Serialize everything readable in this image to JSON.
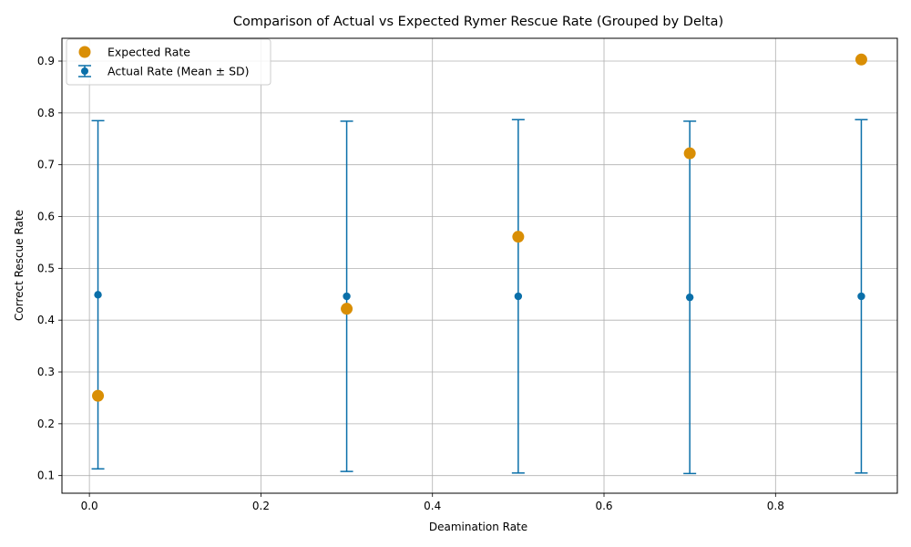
{
  "chart_data": {
    "type": "scatter",
    "title": "Comparison of Actual vs Expected Rymer Rescue Rate (Grouped by Delta)",
    "xlabel": "Deamination Rate",
    "ylabel": "Correct Rescue Rate",
    "xlim": [
      -0.032,
      0.942
    ],
    "ylim": [
      0.066,
      0.944
    ],
    "xticks": [
      "0.0",
      "0.2",
      "0.4",
      "0.6",
      "0.8"
    ],
    "yticks": [
      "0.1",
      "0.2",
      "0.3",
      "0.4",
      "0.5",
      "0.6",
      "0.7",
      "0.8",
      "0.9"
    ],
    "grid": true,
    "legend_position": "top-left",
    "series": [
      {
        "name": "Expected Rate",
        "kind": "scatter",
        "color": "#d98e04",
        "x": [
          0.01,
          0.3,
          0.5,
          0.7,
          0.9
        ],
        "y": [
          0.254,
          0.422,
          0.561,
          0.722,
          0.903
        ]
      },
      {
        "name": "Actual Rate (Mean ± SD)",
        "kind": "errorbar",
        "color": "#0a6fa9",
        "x": [
          0.01,
          0.3,
          0.5,
          0.7,
          0.9
        ],
        "y": [
          0.449,
          0.446,
          0.446,
          0.444,
          0.446
        ],
        "sd": [
          0.336,
          0.338,
          0.341,
          0.34,
          0.341
        ]
      }
    ]
  }
}
